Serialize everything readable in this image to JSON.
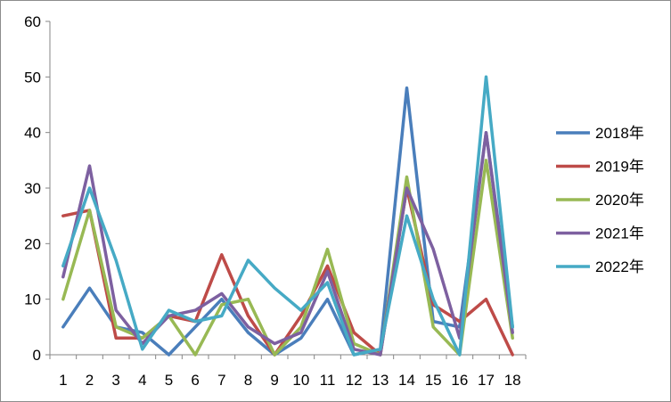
{
  "chart_data": {
    "type": "line",
    "title": "",
    "xlabel": "",
    "ylabel": "",
    "x": [
      1,
      2,
      3,
      4,
      5,
      6,
      7,
      8,
      9,
      10,
      11,
      12,
      13,
      14,
      15,
      16,
      17,
      18
    ],
    "ylim": [
      0,
      60
    ],
    "yticks": [
      0,
      10,
      20,
      30,
      40,
      50,
      60
    ],
    "grid": false,
    "legend_position": "right",
    "series": [
      {
        "name": "2018年",
        "color": "#4a7ebb",
        "values": [
          5,
          12,
          5,
          4,
          0,
          5,
          10,
          4,
          0,
          3,
          10,
          0,
          1,
          48,
          6,
          5,
          40,
          5
        ]
      },
      {
        "name": "2019年",
        "color": "#be4b48",
        "values": [
          25,
          26,
          3,
          3,
          7,
          6,
          18,
          7,
          0,
          7,
          16,
          4,
          0,
          30,
          9,
          6,
          10,
          0
        ]
      },
      {
        "name": "2020年",
        "color": "#98b954",
        "values": [
          10,
          26,
          5,
          3,
          7,
          0,
          9,
          10,
          0,
          5,
          19,
          2,
          0,
          32,
          5,
          0,
          35,
          3
        ]
      },
      {
        "name": "2021年",
        "color": "#7d60a0",
        "values": [
          14,
          34,
          8,
          2,
          7,
          8,
          11,
          5,
          2,
          4,
          15,
          1,
          0,
          30,
          19,
          3,
          40,
          4
        ]
      },
      {
        "name": "2022年",
        "color": "#46aac5",
        "values": [
          16,
          30,
          17,
          1,
          8,
          6,
          7,
          17,
          12,
          8,
          13,
          0,
          1,
          25,
          10,
          0,
          50,
          5
        ]
      }
    ]
  }
}
